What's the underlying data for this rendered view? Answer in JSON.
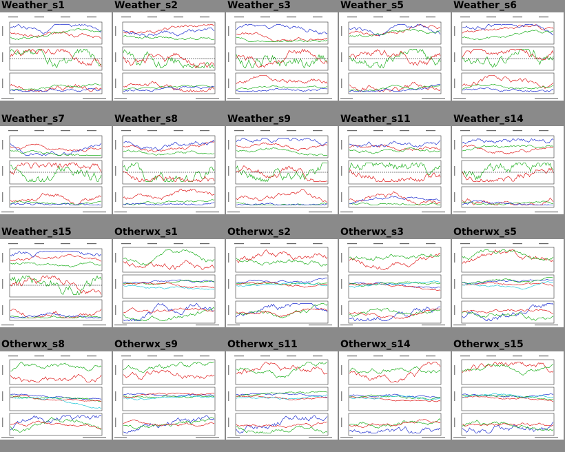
{
  "gallery": {
    "items": [
      {
        "title": "Weather_s1",
        "kind": "weather"
      },
      {
        "title": "Weather_s2",
        "kind": "weather"
      },
      {
        "title": "Weather_s3",
        "kind": "weather"
      },
      {
        "title": "Weather_s5",
        "kind": "weather"
      },
      {
        "title": "Weather_s6",
        "kind": "weather"
      },
      {
        "title": "Weather_s7",
        "kind": "weather"
      },
      {
        "title": "Weather_s8",
        "kind": "weather"
      },
      {
        "title": "Weather_s9",
        "kind": "weather"
      },
      {
        "title": "Weather_s11",
        "kind": "weather"
      },
      {
        "title": "Weather_s14",
        "kind": "weather"
      },
      {
        "title": "Weather_s15",
        "kind": "weather"
      },
      {
        "title": "Otherwx_s1",
        "kind": "otherwx"
      },
      {
        "title": "Otherwx_s2",
        "kind": "otherwx"
      },
      {
        "title": "Otherwx_s3",
        "kind": "otherwx"
      },
      {
        "title": "Otherwx_s5",
        "kind": "otherwx"
      },
      {
        "title": "Otherwx_s8",
        "kind": "otherwx"
      },
      {
        "title": "Otherwx_s9",
        "kind": "otherwx"
      },
      {
        "title": "Otherwx_s11",
        "kind": "otherwx"
      },
      {
        "title": "Otherwx_s14",
        "kind": "otherwx"
      },
      {
        "title": "Otherwx_s15",
        "kind": "otherwx"
      }
    ]
  },
  "colors": {
    "background": "#8a8a8a",
    "series_red": "#e02020",
    "series_green": "#20b020",
    "series_blue": "#2030d0",
    "series_cyan": "#20c8d8",
    "series_magenta": "#d020d0"
  }
}
